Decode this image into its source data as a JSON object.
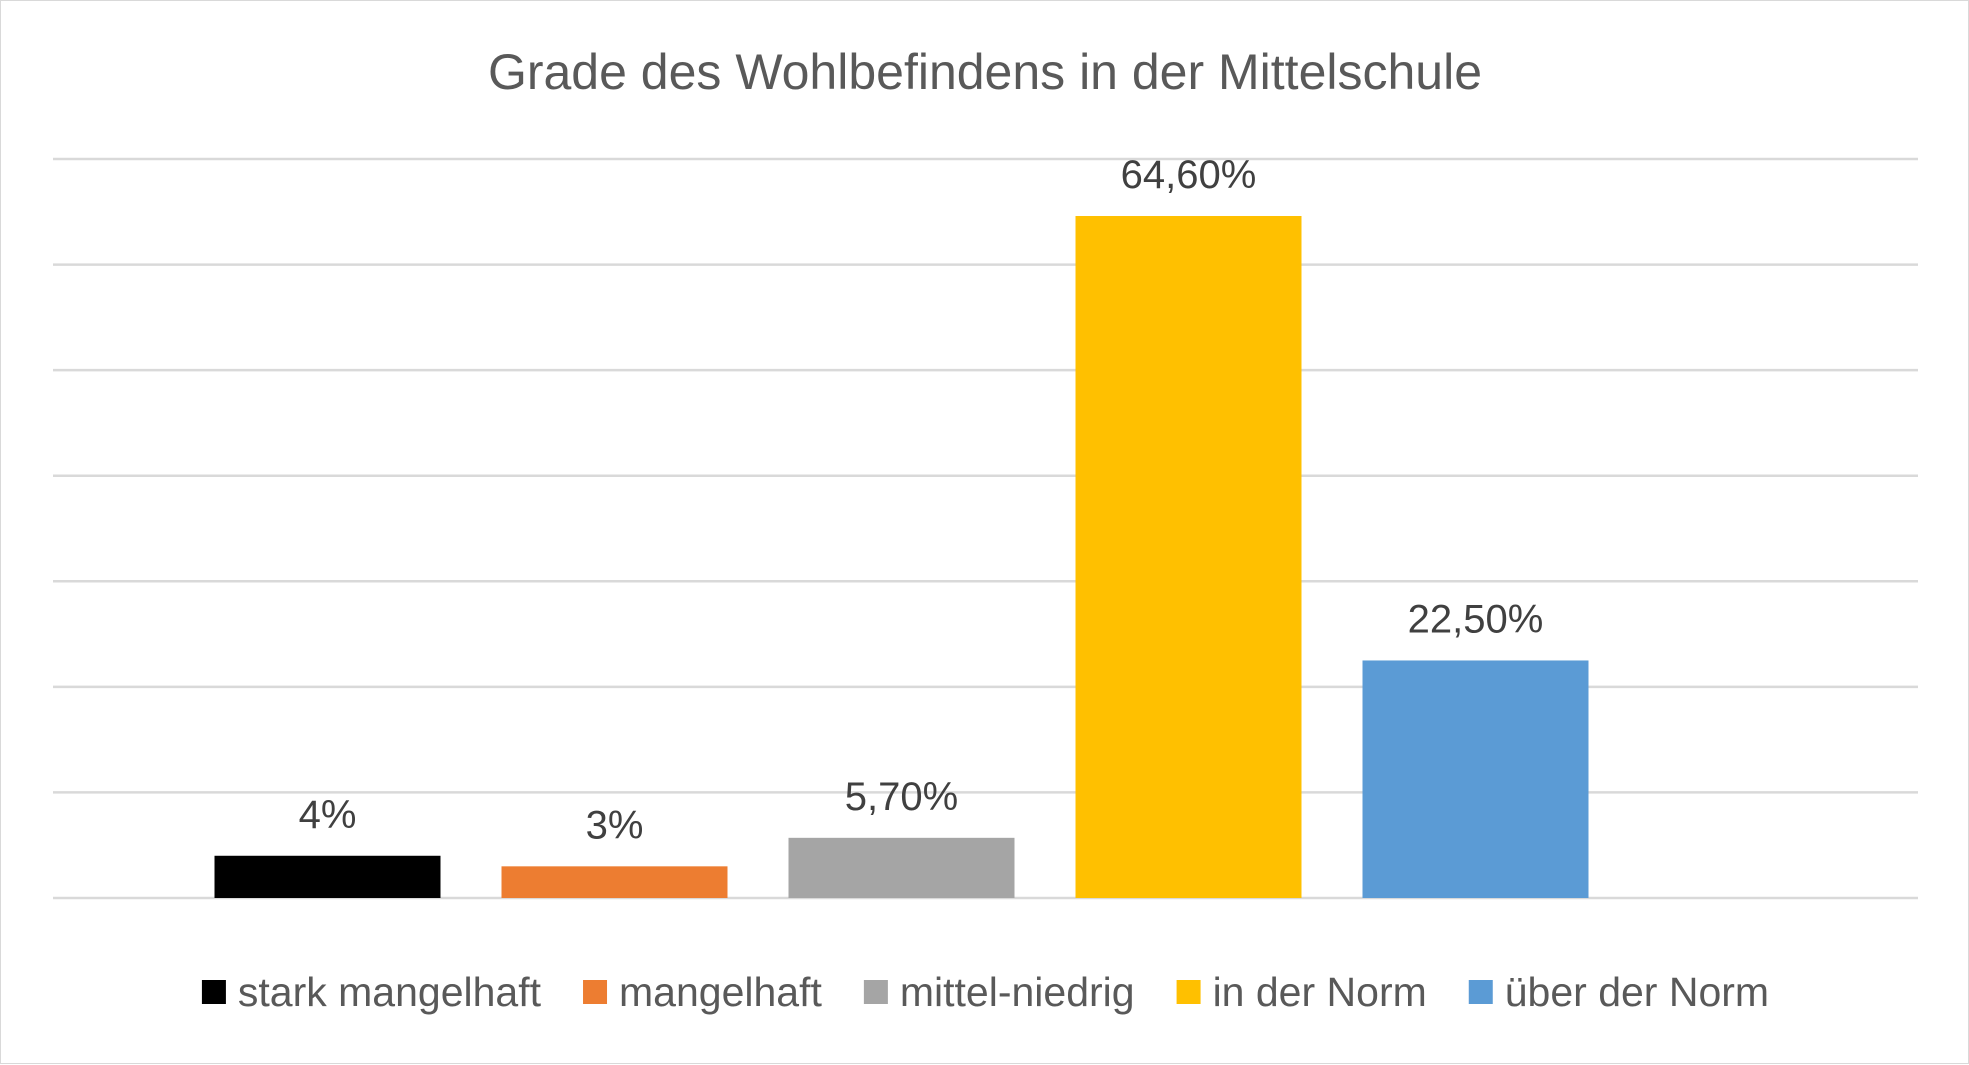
{
  "chart_data": {
    "type": "bar",
    "title": "Grade des Wohlbefindens in der Mittelschule",
    "categories": [
      "stark mangelhaft",
      "mangelhaft",
      "mittel-niedrig",
      "in der Norm",
      "über der Norm"
    ],
    "values": [
      4,
      3,
      5.7,
      64.6,
      22.5
    ],
    "data_labels": [
      "4%",
      "3%",
      "5,70%",
      "64,60%",
      "22,50%"
    ],
    "colors": [
      "#000000",
      "#ED7D31",
      "#A5A5A5",
      "#FFC000",
      "#5B9BD5"
    ],
    "xlabel": "",
    "ylabel": "",
    "ylim": [
      0,
      70
    ],
    "gridline_step": 10,
    "grid": true,
    "axis_labels_visible": false,
    "legend_position": "bottom"
  }
}
